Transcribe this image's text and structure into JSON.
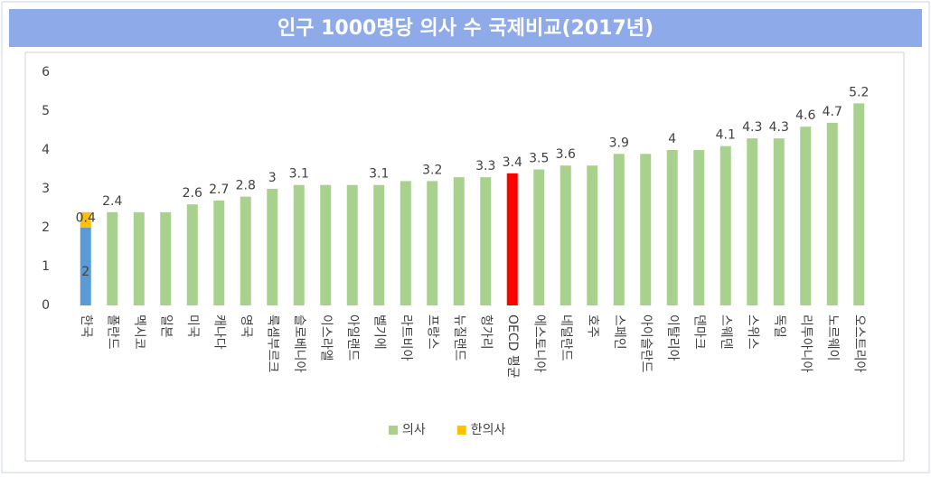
{
  "chart_data": {
    "type": "bar",
    "title": "인구 1000명당 의사 수 국제비교(2017년)",
    "categories": [
      "한국",
      "폴란드",
      "멕시코",
      "일본",
      "미국",
      "캐나다",
      "영국",
      "룩셈부르크",
      "슬로베니아",
      "이스라엘",
      "아일랜드",
      "벨기에",
      "라트비아",
      "프랑스",
      "뉴질랜드",
      "헝가리",
      "OECD 평균",
      "에스토니아",
      "네덜란드",
      "호주",
      "스페인",
      "아이슬란드",
      "이탈리아",
      "덴마크",
      "스웨덴",
      "스위스",
      "독일",
      "리투아니아",
      "노르웨이",
      "오스트리아"
    ],
    "series": [
      {
        "name": "의사",
        "color": "#a9d18e",
        "colors": [
          "#5b9bd5",
          "#a9d18e",
          "#a9d18e",
          "#a9d18e",
          "#a9d18e",
          "#a9d18e",
          "#a9d18e",
          "#a9d18e",
          "#a9d18e",
          "#a9d18e",
          "#a9d18e",
          "#a9d18e",
          "#a9d18e",
          "#a9d18e",
          "#a9d18e",
          "#a9d18e",
          "#ff0000",
          "#a9d18e",
          "#a9d18e",
          "#a9d18e",
          "#a9d18e",
          "#a9d18e",
          "#a9d18e",
          "#a9d18e",
          "#a9d18e",
          "#a9d18e",
          "#a9d18e",
          "#a9d18e",
          "#a9d18e",
          "#a9d18e"
        ],
        "values": [
          2,
          2.4,
          2.4,
          2.4,
          2.6,
          2.7,
          2.8,
          3,
          3.1,
          3.1,
          3.1,
          3.1,
          3.2,
          3.2,
          3.3,
          3.3,
          3.4,
          3.5,
          3.6,
          3.6,
          3.9,
          3.9,
          4,
          4,
          4.1,
          4.3,
          4.3,
          4.6,
          4.7,
          5.2
        ],
        "value_labels": [
          "2",
          "2.4",
          null,
          null,
          "2.6",
          "2.7",
          "2.8",
          "3",
          "3.1",
          null,
          null,
          "3.1",
          null,
          "3.2",
          null,
          "3.3",
          "3.4",
          "3.5",
          "3.6",
          null,
          "3.9",
          null,
          "4",
          null,
          "4.1",
          "4.3",
          "4.3",
          "4.6",
          "4.7",
          "5.2"
        ]
      },
      {
        "name": "한의사",
        "color": "#ffc000",
        "values": [
          0.4,
          null,
          null,
          null,
          null,
          null,
          null,
          null,
          null,
          null,
          null,
          null,
          null,
          null,
          null,
          null,
          null,
          null,
          null,
          null,
          null,
          null,
          null,
          null,
          null,
          null,
          null,
          null,
          null,
          null
        ],
        "value_labels": [
          "0.4",
          null,
          null,
          null,
          null,
          null,
          null,
          null,
          null,
          null,
          null,
          null,
          null,
          null,
          null,
          null,
          null,
          null,
          null,
          null,
          null,
          null,
          null,
          null,
          null,
          null,
          null,
          null,
          null,
          null
        ]
      }
    ],
    "stacked": true,
    "ylim": [
      0,
      6
    ],
    "yticks": [
      0,
      1,
      2,
      3,
      4,
      5,
      6
    ],
    "grid": false,
    "legend": "bottom"
  }
}
